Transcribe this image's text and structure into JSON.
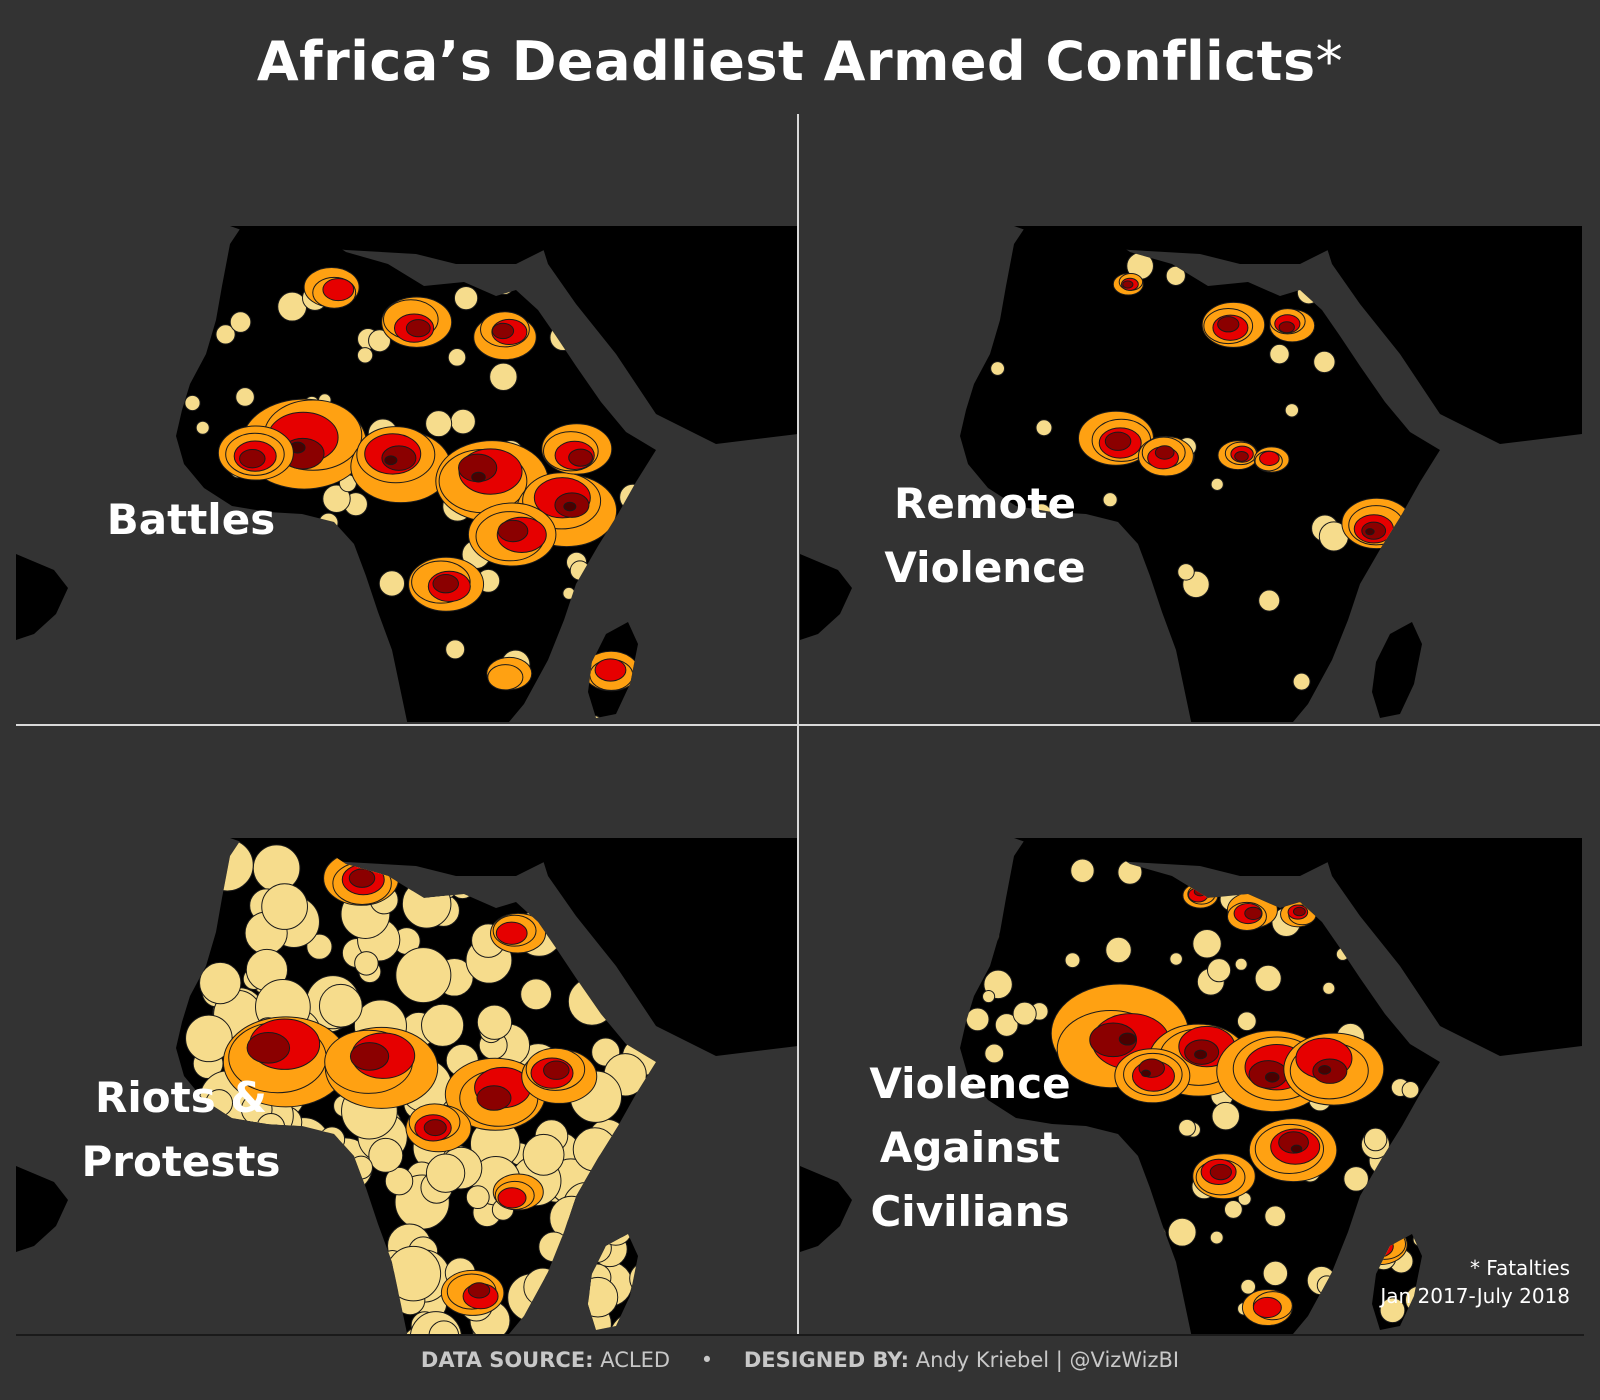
{
  "title": "Africa’s Deadliest Armed Conflicts",
  "title_marker": "*",
  "panels": [
    {
      "label_lines": [
        "Battles"
      ],
      "density": "high",
      "scheme": "battles"
    },
    {
      "label_lines": [
        "Remote",
        "Violence"
      ],
      "density": "low",
      "scheme": "remote"
    },
    {
      "label_lines": [
        "Riots &",
        "Protests"
      ],
      "density": "widespread",
      "scheme": "riots"
    },
    {
      "label_lines": [
        "Violence",
        "Against",
        "Civilians"
      ],
      "density": "high",
      "scheme": "civilians"
    }
  ],
  "footnote": {
    "line1": "* Fatalties",
    "line2": "Jan 2017-July 2018"
  },
  "footer": {
    "source_label": "DATA SOURCE:",
    "source_value": "ACLED",
    "separator": "•",
    "designer_label": "DESIGNED BY:",
    "designer_value": "Andy Kriebel | @VizWizBI"
  },
  "colors": {
    "background": "#333333",
    "land": "#000000",
    "ocean": "#333333",
    "scale": [
      "#f6dc8c",
      "#ffa112",
      "#e60000",
      "#8b0000",
      "#4a0000"
    ]
  }
}
